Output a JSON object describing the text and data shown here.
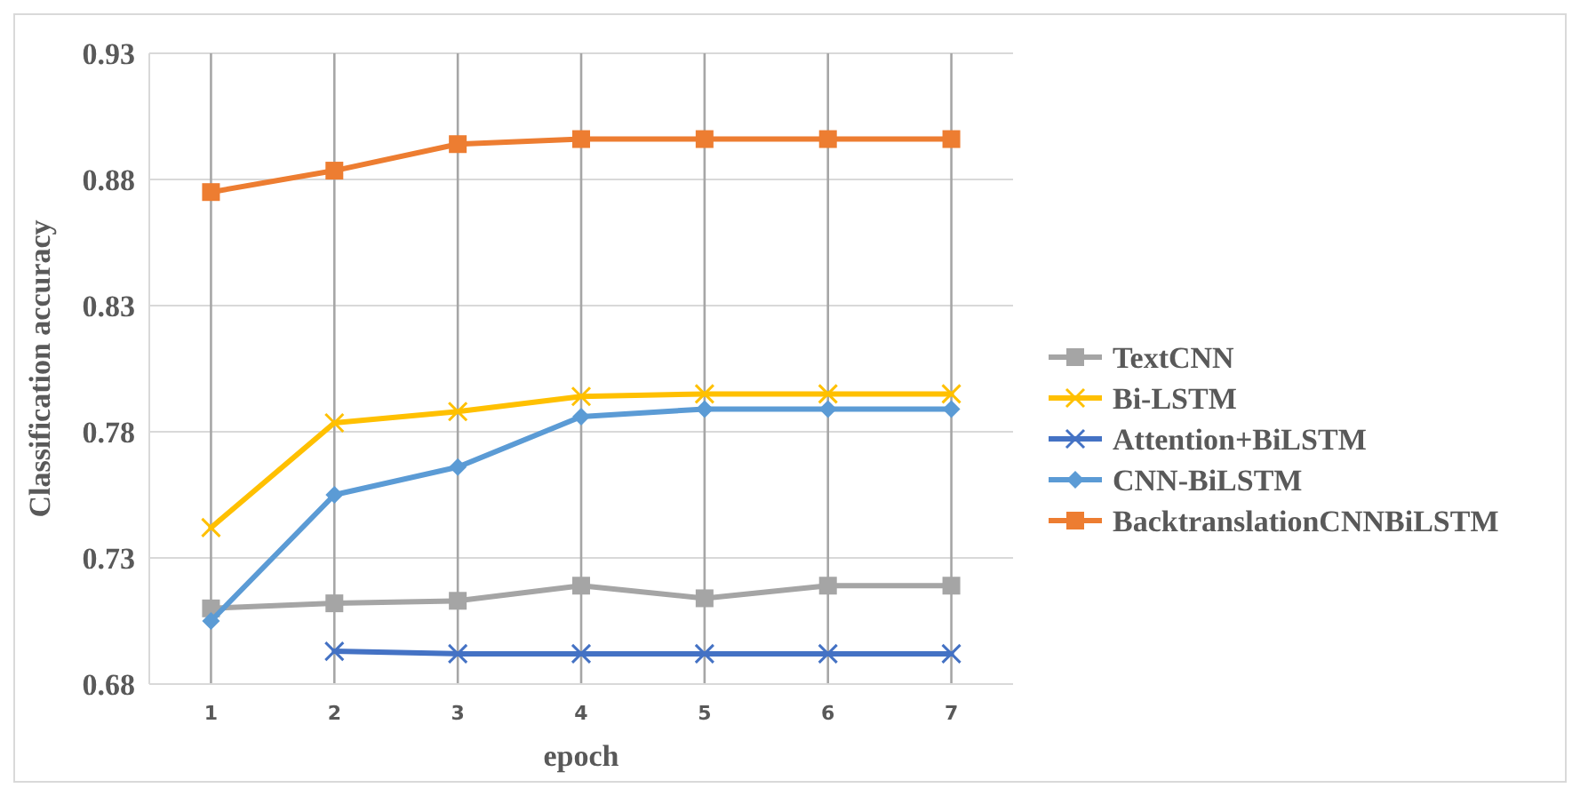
{
  "chart_data": {
    "type": "line",
    "xlabel": "epoch",
    "ylabel": "Classification accuracy",
    "categories": [
      "1",
      "2",
      "3",
      "4",
      "5",
      "6",
      "7"
    ],
    "ylim": [
      0.68,
      0.93
    ],
    "yticks": [
      0.68,
      0.73,
      0.78,
      0.83,
      0.88,
      0.93
    ],
    "grid": true,
    "legend": "right",
    "series": [
      {
        "name": "TextCNN",
        "color": "#a5a5a5",
        "marker": "square",
        "values": [
          0.71,
          0.712,
          0.713,
          0.719,
          0.714,
          0.719,
          0.719
        ]
      },
      {
        "name": "Bi-LSTM",
        "color": "#ffc000",
        "marker": "cross",
        "values": [
          0.742,
          0.7835,
          0.788,
          0.794,
          0.795,
          0.795,
          0.795
        ]
      },
      {
        "name": "Attention+BiLSTM",
        "color": "#4472c4",
        "marker": "cross",
        "values": [
          null,
          0.693,
          0.692,
          0.692,
          0.692,
          0.692,
          0.692
        ]
      },
      {
        "name": "CNN-BiLSTM",
        "color": "#5b9bd5",
        "marker": "diamond",
        "values": [
          0.705,
          0.755,
          0.766,
          0.786,
          0.789,
          0.789,
          0.789
        ]
      },
      {
        "name": "BacktranslationCNNBiLSTM",
        "color": "#ed7d31",
        "marker": "square",
        "values": [
          0.875,
          0.8835,
          0.894,
          0.896,
          0.896,
          0.896,
          0.896
        ]
      }
    ]
  }
}
